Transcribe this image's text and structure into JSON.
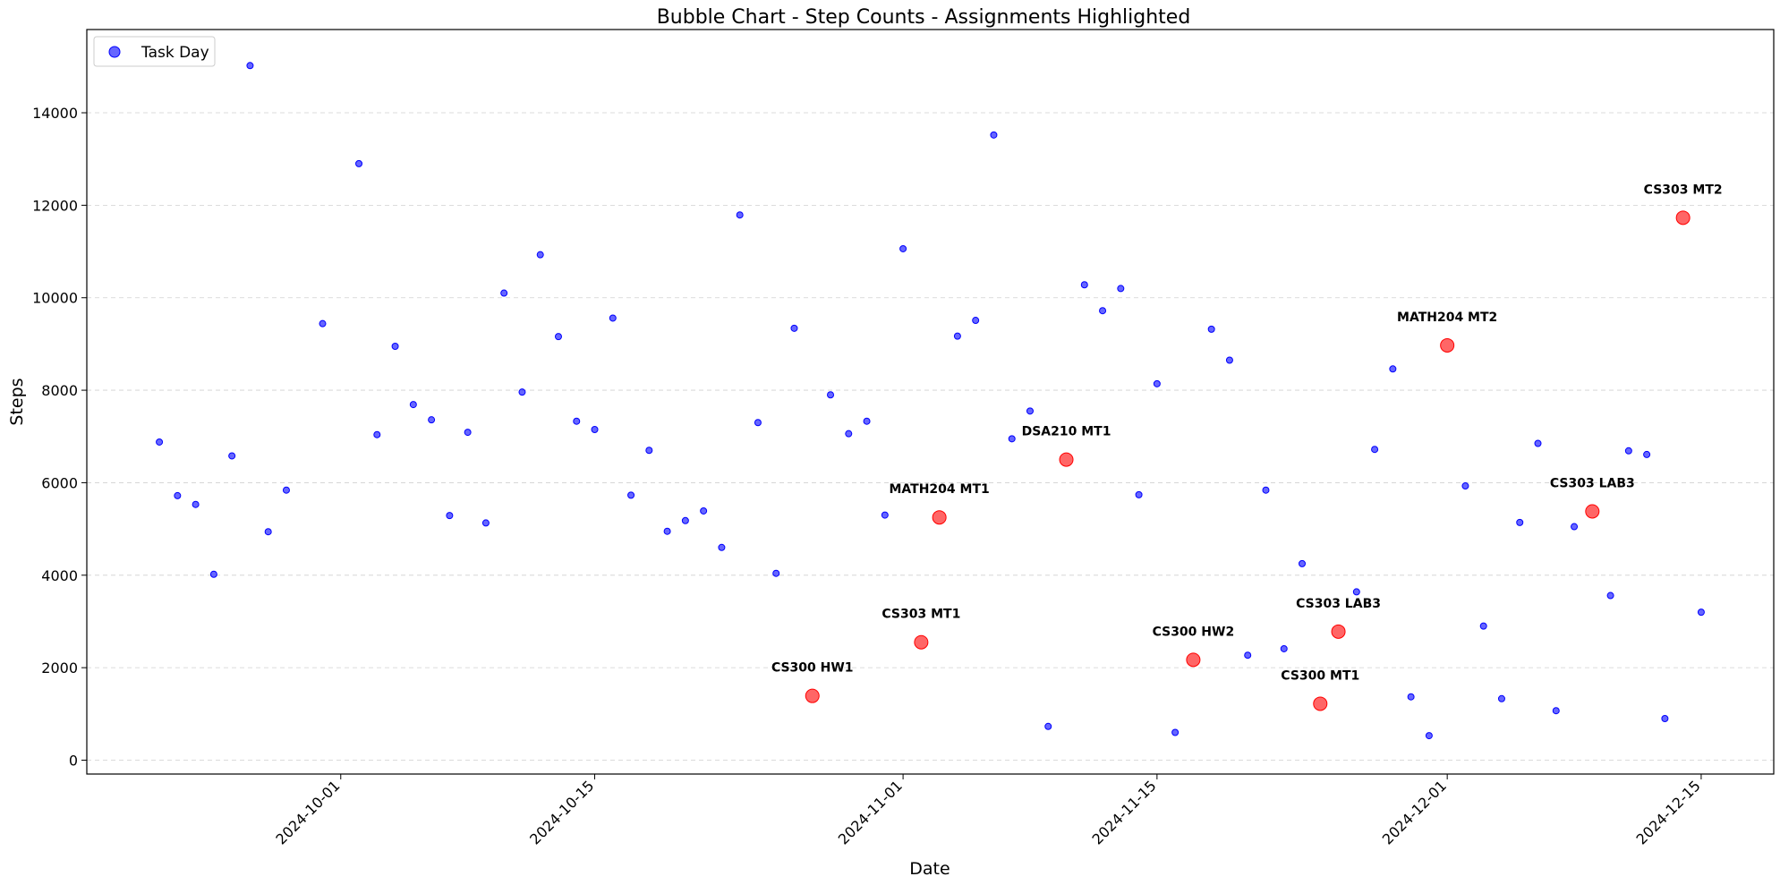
{
  "chart_data": {
    "type": "scatter",
    "title": "Bubble Chart - Step Counts - Assignments Highlighted",
    "xlabel": "Date",
    "ylabel": "Steps",
    "xlim": [
      "2024-09-17",
      "2024-12-19"
    ],
    "ylim": [
      -300,
      15800
    ],
    "x_ticks": [
      "2024-10-01",
      "2024-10-15",
      "2024-11-01",
      "2024-11-15",
      "2024-12-01",
      "2024-12-15"
    ],
    "y_ticks": [
      0,
      2000,
      4000,
      6000,
      8000,
      10000,
      12000,
      14000
    ],
    "grid": "horizontal-dashed",
    "legend": {
      "placement": "top-left",
      "entries": [
        {
          "label": "Task Day",
          "color": "#0000ff"
        }
      ]
    },
    "colors": {
      "task_day": "#0000ff",
      "assignment": "#ff0000"
    },
    "series": [
      {
        "name": "Task Day",
        "points": [
          {
            "x": "2024-09-21",
            "y": 6880
          },
          {
            "x": "2024-09-22",
            "y": 5720
          },
          {
            "x": "2024-09-23",
            "y": 5530
          },
          {
            "x": "2024-09-24",
            "y": 4020
          },
          {
            "x": "2024-09-25",
            "y": 6580
          },
          {
            "x": "2024-09-26",
            "y": 15020
          },
          {
            "x": "2024-09-27",
            "y": 4940
          },
          {
            "x": "2024-09-28",
            "y": 5840
          },
          {
            "x": "2024-09-30",
            "y": 9440
          },
          {
            "x": "2024-10-02",
            "y": 12900
          },
          {
            "x": "2024-10-03",
            "y": 7040
          },
          {
            "x": "2024-10-04",
            "y": 8950
          },
          {
            "x": "2024-10-05",
            "y": 7690
          },
          {
            "x": "2024-10-06",
            "y": 7360
          },
          {
            "x": "2024-10-07",
            "y": 5290
          },
          {
            "x": "2024-10-08",
            "y": 7090
          },
          {
            "x": "2024-10-09",
            "y": 5130
          },
          {
            "x": "2024-10-10",
            "y": 10100
          },
          {
            "x": "2024-10-11",
            "y": 7960
          },
          {
            "x": "2024-10-12",
            "y": 10930
          },
          {
            "x": "2024-10-13",
            "y": 9160
          },
          {
            "x": "2024-10-14",
            "y": 7330
          },
          {
            "x": "2024-10-15",
            "y": 7150
          },
          {
            "x": "2024-10-16",
            "y": 9560
          },
          {
            "x": "2024-10-17",
            "y": 5730
          },
          {
            "x": "2024-10-18",
            "y": 6700
          },
          {
            "x": "2024-10-19",
            "y": 4950
          },
          {
            "x": "2024-10-20",
            "y": 5180
          },
          {
            "x": "2024-10-21",
            "y": 5390
          },
          {
            "x": "2024-10-22",
            "y": 4600
          },
          {
            "x": "2024-10-23",
            "y": 11790
          },
          {
            "x": "2024-10-24",
            "y": 7300
          },
          {
            "x": "2024-10-25",
            "y": 4040
          },
          {
            "x": "2024-10-26",
            "y": 9340
          },
          {
            "x": "2024-10-28",
            "y": 7900
          },
          {
            "x": "2024-10-29",
            "y": 7060
          },
          {
            "x": "2024-10-30",
            "y": 7330
          },
          {
            "x": "2024-10-31",
            "y": 5300
          },
          {
            "x": "2024-11-01",
            "y": 11060
          },
          {
            "x": "2024-11-04",
            "y": 9170
          },
          {
            "x": "2024-11-05",
            "y": 9510
          },
          {
            "x": "2024-11-06",
            "y": 13520
          },
          {
            "x": "2024-11-07",
            "y": 6950
          },
          {
            "x": "2024-11-08",
            "y": 7550
          },
          {
            "x": "2024-11-09",
            "y": 730
          },
          {
            "x": "2024-11-11",
            "y": 10280
          },
          {
            "x": "2024-11-12",
            "y": 9720
          },
          {
            "x": "2024-11-13",
            "y": 10200
          },
          {
            "x": "2024-11-14",
            "y": 5740
          },
          {
            "x": "2024-11-15",
            "y": 8140
          },
          {
            "x": "2024-11-16",
            "y": 600
          },
          {
            "x": "2024-11-18",
            "y": 9320
          },
          {
            "x": "2024-11-19",
            "y": 8650
          },
          {
            "x": "2024-11-20",
            "y": 2270
          },
          {
            "x": "2024-11-21",
            "y": 5840
          },
          {
            "x": "2024-11-22",
            "y": 2410
          },
          {
            "x": "2024-11-23",
            "y": 4250
          },
          {
            "x": "2024-11-26",
            "y": 3640
          },
          {
            "x": "2024-11-27",
            "y": 6720
          },
          {
            "x": "2024-11-28",
            "y": 8460
          },
          {
            "x": "2024-11-29",
            "y": 1370
          },
          {
            "x": "2024-11-30",
            "y": 530
          },
          {
            "x": "2024-12-02",
            "y": 5930
          },
          {
            "x": "2024-12-03",
            "y": 2900
          },
          {
            "x": "2024-12-04",
            "y": 1330
          },
          {
            "x": "2024-12-05",
            "y": 5140
          },
          {
            "x": "2024-12-06",
            "y": 6850
          },
          {
            "x": "2024-12-07",
            "y": 1070
          },
          {
            "x": "2024-12-08",
            "y": 5050
          },
          {
            "x": "2024-12-10",
            "y": 3560
          },
          {
            "x": "2024-12-11",
            "y": 6690
          },
          {
            "x": "2024-12-12",
            "y": 6610
          },
          {
            "x": "2024-12-13",
            "y": 900
          },
          {
            "x": "2024-12-15",
            "y": 3200
          }
        ]
      },
      {
        "points": [
          {
            "x": "2024-10-27",
            "y": 1390,
            "label": "CS300 HW1"
          },
          {
            "x": "2024-11-02",
            "y": 2550,
            "label": "CS303 MT1"
          },
          {
            "x": "2024-11-03",
            "y": 5250,
            "label": "MATH204 MT1"
          },
          {
            "x": "2024-11-10",
            "y": 6500,
            "label": "DSA210 MT1"
          },
          {
            "x": "2024-11-17",
            "y": 2170,
            "label": "CS300 HW2"
          },
          {
            "x": "2024-11-24",
            "y": 1220,
            "label": "CS300 MT1"
          },
          {
            "x": "2024-11-25",
            "y": 2780,
            "label": "CS303 LAB3"
          },
          {
            "x": "2024-12-01",
            "y": 8970,
            "label": "MATH204 MT2"
          },
          {
            "x": "2024-12-09",
            "y": 5380,
            "label": "CS303 LAB3"
          },
          {
            "x": "2024-12-14",
            "y": 11730,
            "label": "CS303 MT2"
          }
        ]
      }
    ]
  }
}
